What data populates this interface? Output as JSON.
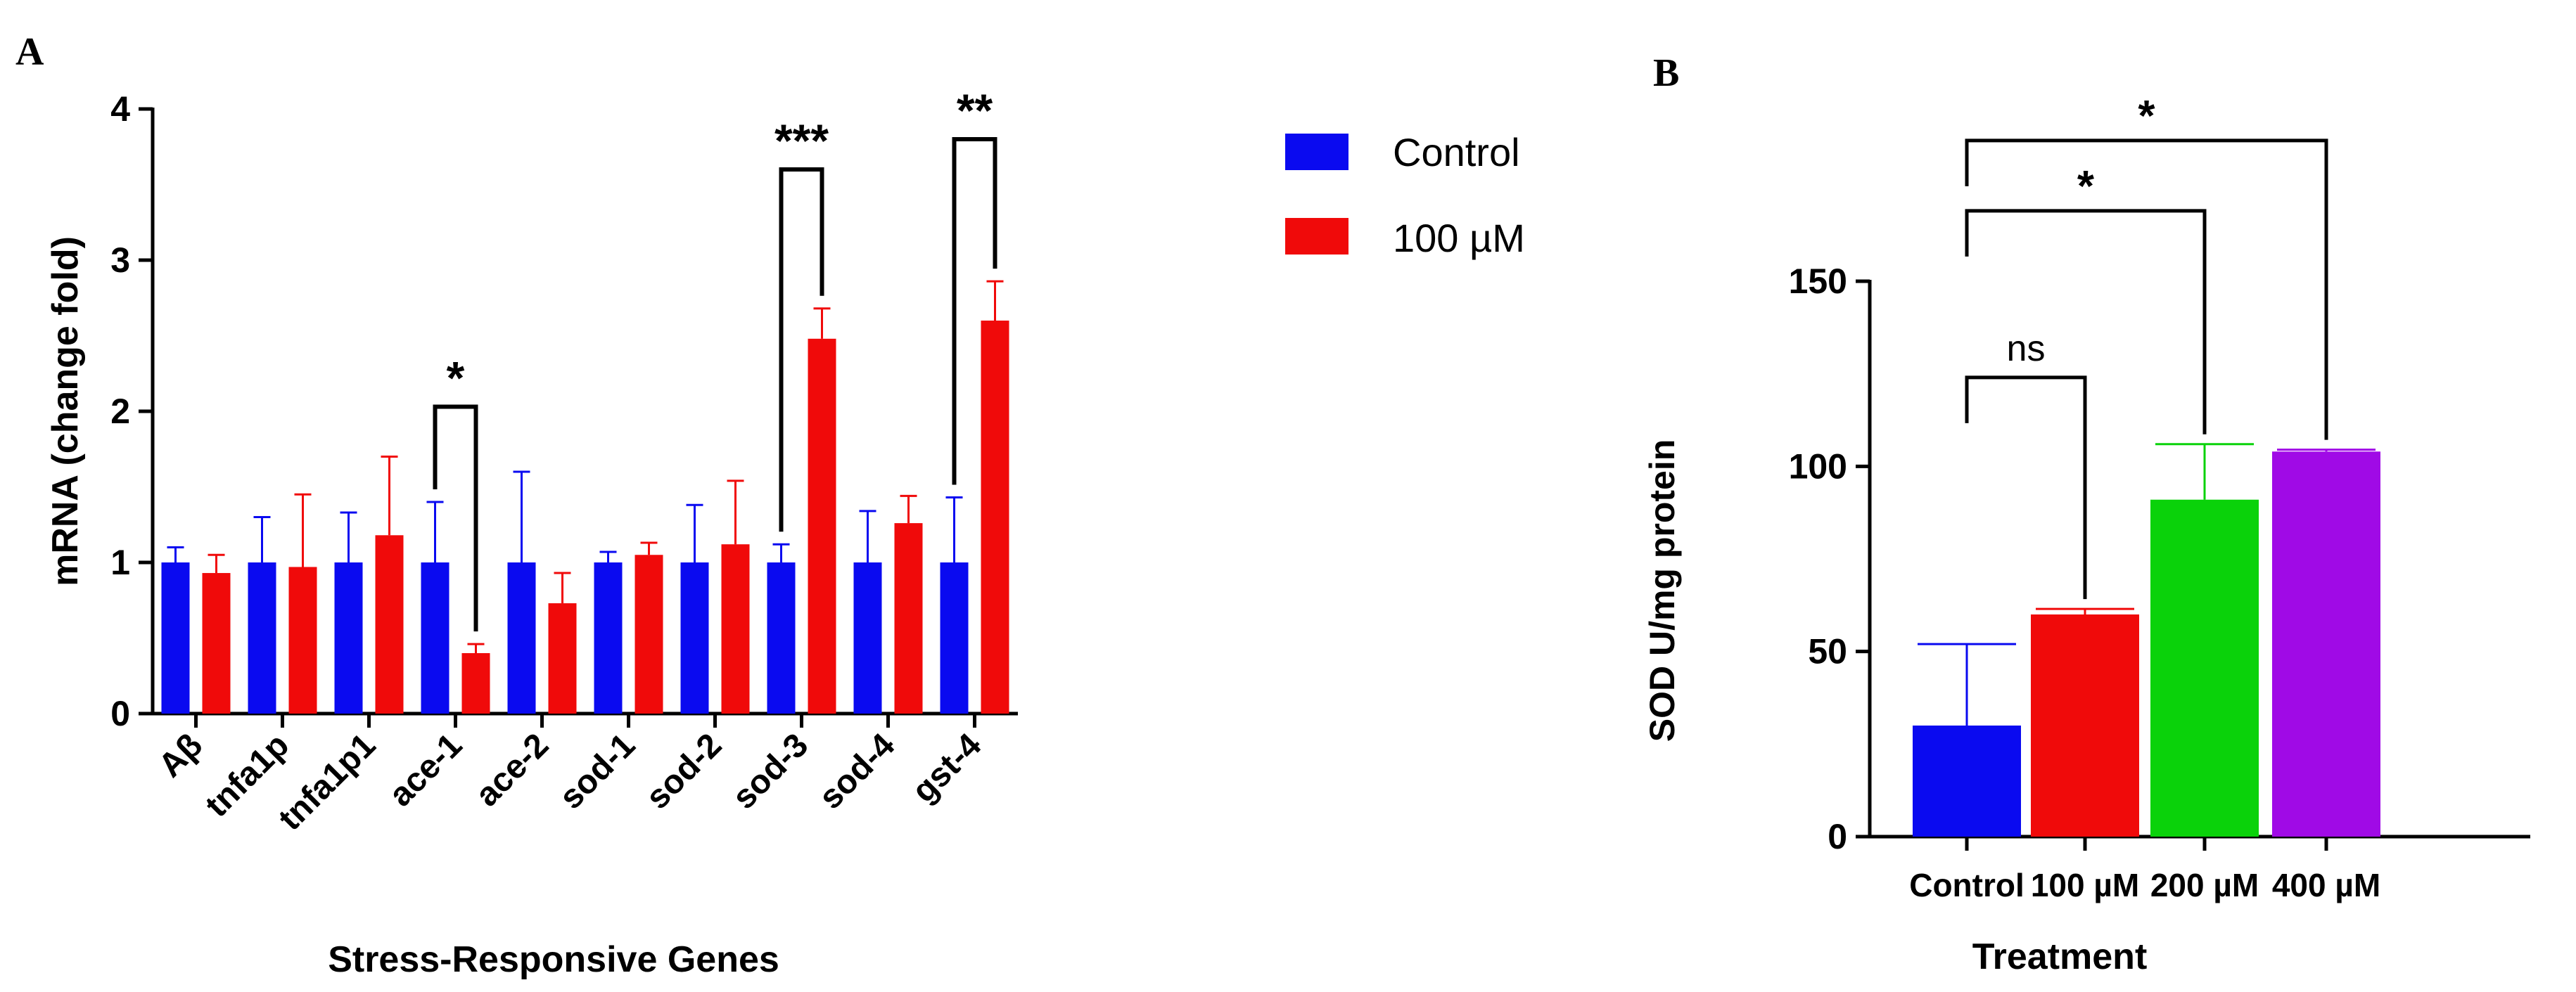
{
  "chart_data": [
    {
      "panel": "A",
      "type": "bar",
      "xlabel": "Stress-Responsive Genes",
      "ylabel": "mRNA (change fold)",
      "ylim": [
        0,
        4
      ],
      "yticks": [
        0,
        1,
        2,
        3,
        4
      ],
      "categories": [
        "Aβ",
        "tnfa1p",
        "tnfa1p1",
        "ace-1",
        "ace-2",
        "sod-1",
        "sod-2",
        "sod-3",
        "sod-4",
        "gst-4"
      ],
      "series": [
        {
          "name": "Control",
          "color": "#0a0af0",
          "values": [
            1.0,
            1.0,
            1.0,
            1.0,
            1.0,
            1.0,
            1.0,
            1.0,
            1.0,
            1.0
          ],
          "errors": [
            0.1,
            0.3,
            0.33,
            0.4,
            0.6,
            0.07,
            0.38,
            0.12,
            0.34,
            0.43
          ]
        },
        {
          "name": "100 µM",
          "color": "#f00a0a",
          "values": [
            0.93,
            0.97,
            1.18,
            0.4,
            0.73,
            1.05,
            1.12,
            2.48,
            1.26,
            2.6
          ],
          "errors": [
            0.12,
            0.48,
            0.52,
            0.06,
            0.2,
            0.08,
            0.42,
            0.2,
            0.18,
            0.26
          ]
        }
      ],
      "legend": [
        "Control",
        "100 µM"
      ],
      "legend_position": "top-right outside",
      "annotations": [
        {
          "category_index": 3,
          "label": "*",
          "top_value": 2.03
        },
        {
          "category_index": 7,
          "label": "***",
          "top_value": 3.6
        },
        {
          "category_index": 9,
          "label": "**",
          "top_value": 3.8
        }
      ]
    },
    {
      "panel": "B",
      "type": "bar",
      "xlabel": "Treatment",
      "ylabel": "SOD U/mg protein",
      "ylim": [
        0,
        150
      ],
      "yticks": [
        0,
        50,
        100,
        150
      ],
      "categories": [
        "Control",
        "100 µM",
        "200 µM",
        "400 µM"
      ],
      "values": [
        30,
        60,
        91,
        104
      ],
      "errors": [
        22,
        1.5,
        15,
        0.5
      ],
      "colors": [
        "#0a0af0",
        "#f00a0a",
        "#0ad20a",
        "#a00ae6"
      ],
      "comparisons": [
        {
          "from": 0,
          "to": 1,
          "label": "ns",
          "top_value": 124
        },
        {
          "from": 0,
          "to": 2,
          "label": "*",
          "top_value": 169
        },
        {
          "from": 0,
          "to": 3,
          "label": "*",
          "top_value": 188
        }
      ]
    }
  ]
}
